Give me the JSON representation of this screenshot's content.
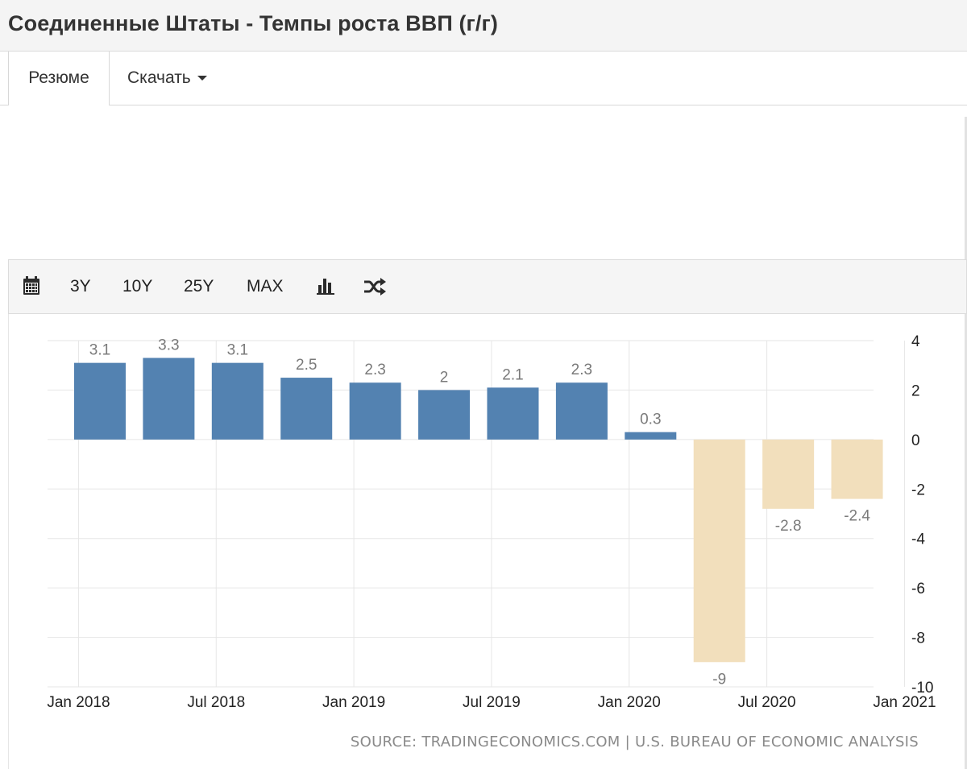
{
  "header": {
    "title": "Соединенные Штаты - Темпы роста ВВП (г/г)"
  },
  "tabs": [
    {
      "label": "Резюме"
    },
    {
      "label": "Скачать"
    }
  ],
  "toolbar": {
    "calendar_icon": "calendar-icon",
    "ranges": [
      "3Y",
      "10Y",
      "25Y",
      "MAX"
    ],
    "bar_chart_icon": "bar-chart-icon",
    "shuffle_icon": "shuffle-icon"
  },
  "colors": {
    "positive": "#5382b1",
    "negative": "#f2dfbc",
    "grid": "#e6e6e6",
    "label": "#7a7a7a"
  },
  "chart_data": {
    "type": "bar",
    "categories": [
      "2018 Q1",
      "2018 Q2",
      "2018 Q3",
      "2018 Q4",
      "2019 Q1",
      "2019 Q2",
      "2019 Q3",
      "2019 Q4",
      "2020 Q1",
      "2020 Q2",
      "2020 Q3",
      "2020 Q4"
    ],
    "values": [
      3.1,
      3.3,
      3.1,
      2.5,
      2.3,
      2,
      2.1,
      2.3,
      0.3,
      -9,
      -2.8,
      -2.4
    ],
    "value_labels": [
      "3.1",
      "3.3",
      "3.1",
      "2.5",
      "2.3",
      "2",
      "2.1",
      "2.3",
      "0.3",
      "-9",
      "-2.8",
      "-2.4"
    ],
    "x_tick_labels": [
      "Jan 2018",
      "Jul 2018",
      "Jan 2019",
      "Jul 2019",
      "Jan 2020",
      "Jul 2020",
      "Jan 2021"
    ],
    "y_ticks": [
      4,
      2,
      0,
      -2,
      -4,
      -6,
      -8,
      -10
    ],
    "ylim": [
      -10,
      4
    ],
    "y_axis_position": "right",
    "grid": true,
    "title": "",
    "xlabel": "",
    "ylabel": ""
  },
  "source": "SOURCE: TRADINGECONOMICS.COM | U.S. BUREAU OF ECONOMIC ANALYSIS"
}
